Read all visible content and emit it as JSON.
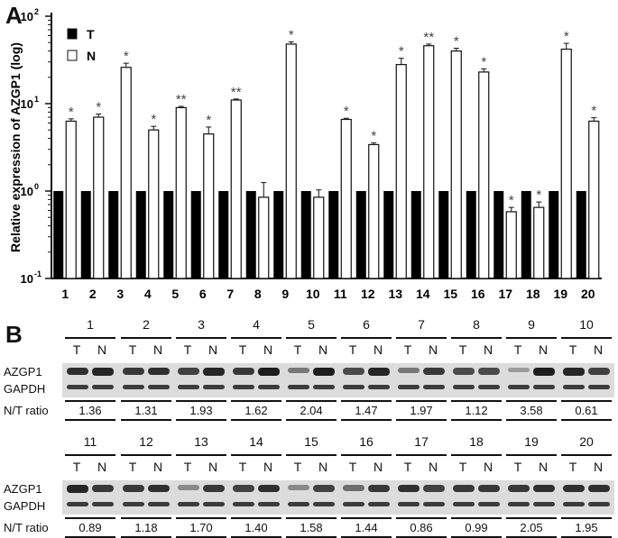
{
  "panel_a": {
    "letter": "A",
    "ylabel": "Relative expression of AZGP1 (log)",
    "legend": [
      {
        "label": "T",
        "fill": "#000000"
      },
      {
        "label": "N",
        "fill": "#ffffff"
      }
    ],
    "y_ticks": [
      {
        "base": "10",
        "exp": "2"
      },
      {
        "base": "10",
        "exp": "1"
      },
      {
        "base": "10",
        "exp": "0"
      },
      {
        "base": "10",
        "exp": "-1"
      }
    ]
  },
  "chart_data": {
    "type": "bar",
    "scale": "log",
    "ylim": [
      0.1,
      100
    ],
    "categories": [
      "1",
      "2",
      "3",
      "4",
      "5",
      "6",
      "7",
      "8",
      "9",
      "10",
      "11",
      "12",
      "13",
      "14",
      "15",
      "16",
      "17",
      "18",
      "19",
      "20"
    ],
    "series": [
      {
        "name": "T",
        "values": [
          1,
          1,
          1,
          1,
          1,
          1,
          1,
          1,
          1,
          1,
          1,
          1,
          1,
          1,
          1,
          1,
          1,
          1,
          1,
          1
        ]
      },
      {
        "name": "N",
        "values": [
          6.3,
          7.0,
          26,
          5.0,
          9.0,
          4.5,
          11,
          0.85,
          48,
          0.85,
          6.6,
          3.4,
          28,
          46,
          40,
          23,
          0.58,
          0.65,
          42,
          6.3
        ],
        "errors": [
          0.4,
          0.6,
          3,
          0.5,
          0.3,
          0.9,
          0.3,
          0.4,
          3,
          0.18,
          0.2,
          0.15,
          5,
          2,
          3,
          2,
          0.07,
          0.1,
          7,
          0.6
        ]
      }
    ],
    "significance": [
      "*",
      "*",
      "*",
      "*",
      "**",
      "*",
      "**",
      "",
      "*",
      "",
      "*",
      "*",
      "*",
      "**",
      "*",
      "*",
      "*",
      "*",
      "*",
      "*"
    ]
  },
  "panel_b": {
    "letter": "B",
    "row_labels": {
      "azgp1": "AZGP1",
      "gapdh": "GAPDH",
      "ratio": "N/T ratio"
    },
    "lane_labels": {
      "t": "T",
      "n": "N"
    },
    "samples_row1": [
      "1",
      "2",
      "3",
      "4",
      "5",
      "6",
      "7",
      "8",
      "9",
      "10"
    ],
    "ratios_row1": [
      "1.36",
      "1.31",
      "1.93",
      "1.62",
      "2.04",
      "1.47",
      "1.97",
      "1.12",
      "3.58",
      "0.61"
    ],
    "samples_row2": [
      "11",
      "12",
      "13",
      "14",
      "15",
      "16",
      "17",
      "18",
      "19",
      "20"
    ],
    "ratios_row2": [
      "0.89",
      "1.18",
      "1.70",
      "1.40",
      "1.58",
      "1.44",
      "0.86",
      "0.99",
      "2.05",
      "1.95"
    ]
  }
}
